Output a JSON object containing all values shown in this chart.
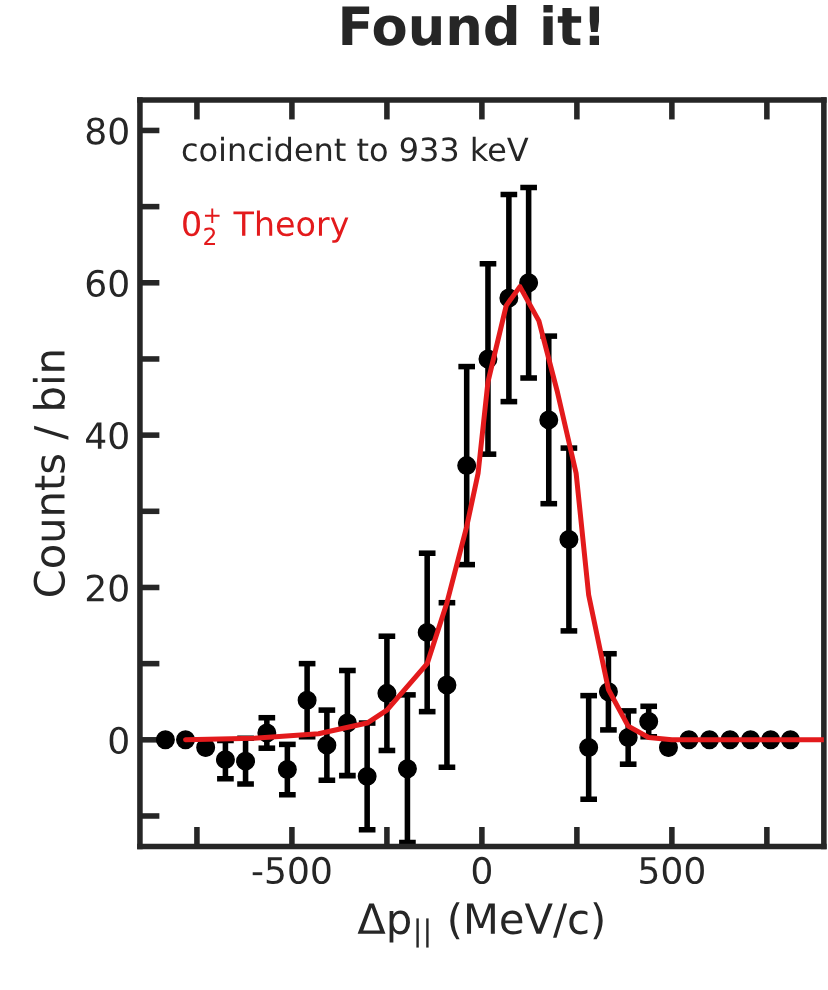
{
  "chart_data": {
    "type": "scatter",
    "title": "Found it!",
    "xlabel": "Δp$_{||}$ (MeV/c)",
    "ylabel": "Counts / bin",
    "annotations": [
      "coincident to 933 keV"
    ],
    "xlim": [
      -900,
      900
    ],
    "ylim": [
      -14,
      84
    ],
    "xticks": [
      {
        "value": -750,
        "label": null
      },
      -500,
      {
        "value": -250,
        "label": null
      },
      0,
      {
        "value": 250,
        "label": null
      },
      500,
      {
        "value": 750,
        "label": null
      }
    ],
    "yticks": [
      {
        "value": -10,
        "label": null
      },
      0,
      {
        "value": 10,
        "label": null
      },
      20,
      {
        "value": 30,
        "label": null
      },
      40,
      {
        "value": 50,
        "label": null
      },
      60,
      {
        "value": 70,
        "label": null
      },
      80
    ],
    "grid": false,
    "legend": false,
    "marker": "circle",
    "series": [
      {
        "color": "#000000",
        "x": [
          -833,
          -780,
          -727,
          -675,
          -622,
          -566,
          -512,
          -460,
          -408,
          -354,
          -302,
          -250,
          -196,
          -144,
          -92,
          -40,
          16,
          71,
          123,
          176,
          229,
          281,
          333,
          385,
          439,
          491,
          545,
          599,
          653,
          707,
          760,
          812
        ],
        "values": [
          0,
          0,
          -1,
          -2.6,
          -2.8,
          0.9,
          -3.9,
          5.2,
          -0.7,
          2.2,
          -4.8,
          6.1,
          -3.8,
          14.1,
          7.2,
          36,
          50,
          58,
          60,
          42,
          26.3,
          -1,
          6.3,
          0.3,
          2.4,
          -1,
          0,
          0,
          0,
          0,
          0,
          0
        ],
        "errors": [
          null,
          null,
          null,
          2.5,
          3,
          2,
          3.3,
          4.8,
          4.6,
          6.9,
          7,
          7.5,
          9.7,
          10.4,
          10.8,
          13,
          12.5,
          13.6,
          12.5,
          11,
          12,
          6.8,
          5,
          3.5,
          2,
          null,
          null,
          null,
          null,
          null,
          null,
          null
        ]
      },
      {
        "type": "line",
        "name": "0$^{+}$$_{2}$ Theory",
        "color": "#e31a1c",
        "line_style": "solid",
        "marker": "none",
        "x": [
          -780,
          -600,
          -430,
          -302,
          -250,
          -144,
          -92,
          -40,
          -10,
          16,
          64,
          100,
          150,
          199,
          248,
          281,
          333,
          385,
          439,
          500,
          600,
          700,
          800,
          900
        ],
        "values": [
          0,
          0.2,
          0.8,
          2.2,
          3.9,
          10,
          18,
          28,
          35,
          47,
          57,
          59.5,
          55,
          45.6,
          35,
          19,
          6.6,
          1.8,
          0.3,
          0,
          0,
          0,
          0,
          0
        ]
      }
    ]
  }
}
